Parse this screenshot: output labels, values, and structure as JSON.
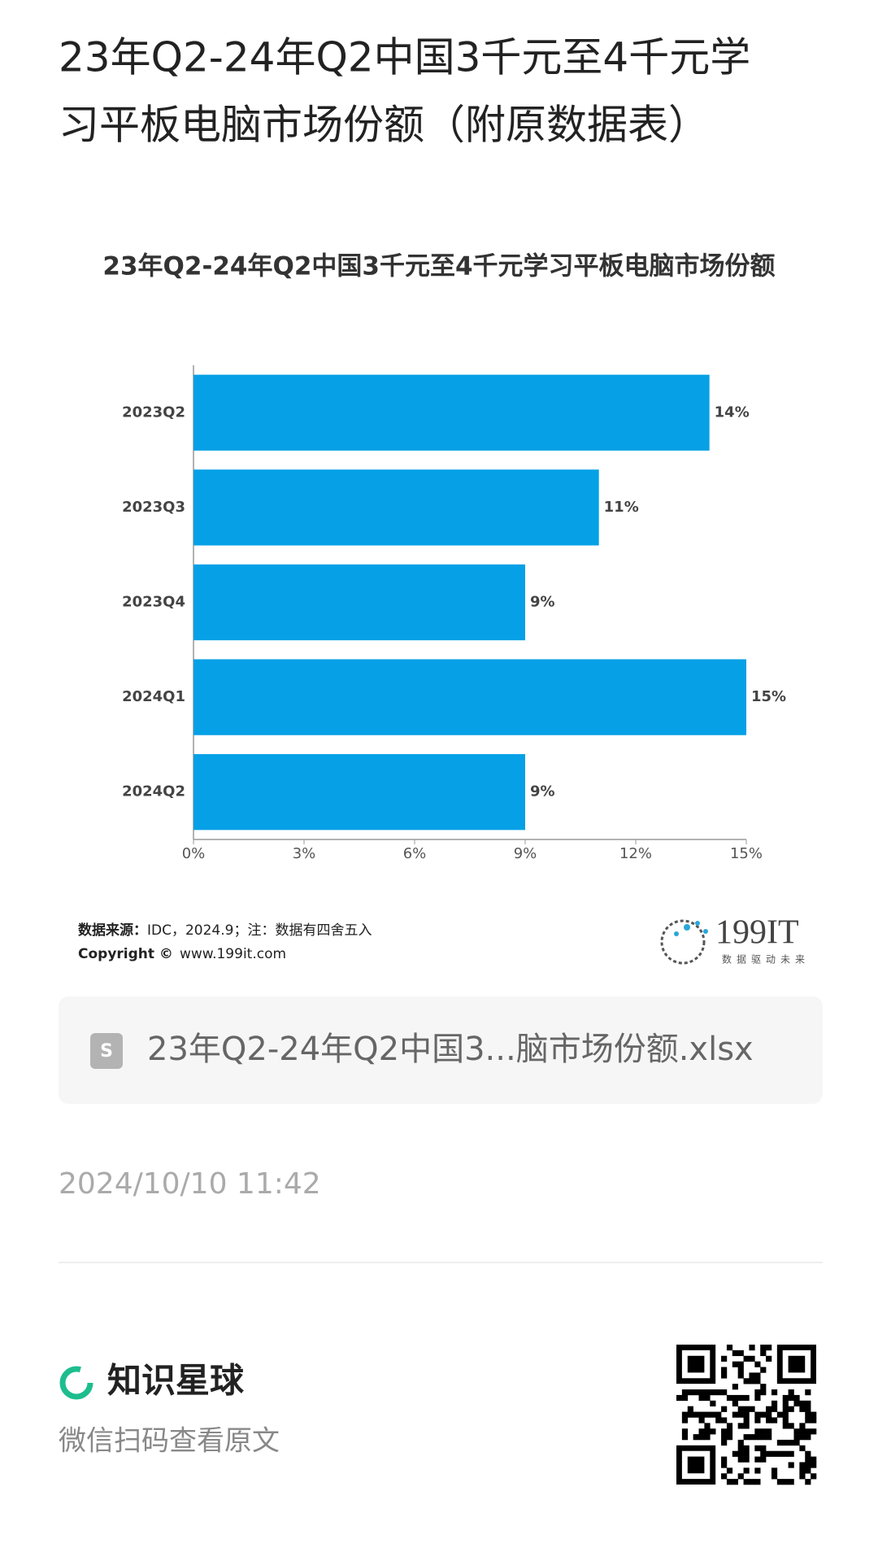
{
  "page_title": "23年Q2-24年Q2中国3千元至4千元学习平板电脑市场份额（附原数据表）",
  "chart_data": {
    "type": "bar",
    "orientation": "horizontal",
    "title": "23年Q2-24年Q2中国3千元至4千元学习平板电脑市场份额",
    "categories": [
      "2023Q2",
      "2023Q3",
      "2023Q4",
      "2024Q1",
      "2024Q2"
    ],
    "values": [
      14,
      11,
      9,
      15,
      9
    ],
    "value_labels": [
      "14%",
      "11%",
      "9%",
      "15%",
      "9%"
    ],
    "color": "#05a0e6",
    "xlim": [
      0,
      15
    ],
    "xticks": [
      {
        "value": 0,
        "label": "0%"
      },
      {
        "value": 3,
        "label": "3%"
      },
      {
        "value": 6,
        "label": "6%"
      },
      {
        "value": 9,
        "label": "9%"
      },
      {
        "value": 12,
        "label": "12%"
      },
      {
        "value": 15,
        "label": "15%"
      }
    ]
  },
  "source": {
    "label": "数据来源：",
    "text": "IDC，2024.9；注：数据有四舍五入",
    "copyright_label": "Copyright ©",
    "copyright_url": "www.199it.com"
  },
  "logo": {
    "name": "199IT",
    "slogan": "数据驱动未来"
  },
  "file": {
    "name": "23年Q2-24年Q2中国3...脑市场份额.xlsx"
  },
  "date": "2024/10/10 11:42",
  "footer": {
    "brand": "知识星球",
    "hint": "微信扫码查看原文"
  }
}
